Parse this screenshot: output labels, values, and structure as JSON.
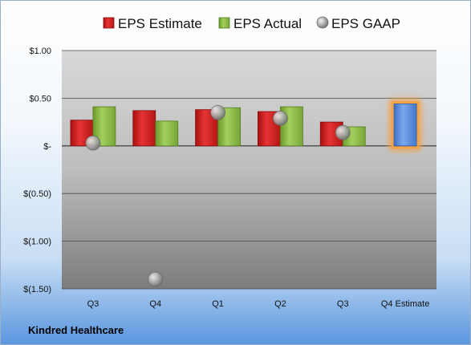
{
  "chart_data": {
    "type": "bar",
    "categories": [
      "Q3",
      "Q4",
      "Q1",
      "Q2",
      "Q3",
      "Q4 Estimate"
    ],
    "series": [
      {
        "name": "EPS Estimate",
        "type": "bar",
        "color": "#d42020",
        "values": [
          0.27,
          0.37,
          0.38,
          0.36,
          0.25,
          null
        ]
      },
      {
        "name": "EPS Actual",
        "type": "bar",
        "color": "#8db84a",
        "values": [
          0.41,
          0.26,
          0.4,
          0.41,
          0.2,
          null
        ]
      },
      {
        "name": "EPS GAAP",
        "type": "scatter",
        "color": "#a8a8a8",
        "values": [
          0.03,
          -1.4,
          0.35,
          0.29,
          0.14,
          null
        ]
      },
      {
        "name": "Q4 Estimate",
        "type": "bar",
        "color": "#4f86d6",
        "highlight": "#f5a040",
        "values": [
          null,
          null,
          null,
          null,
          null,
          0.44
        ]
      }
    ],
    "yticks": [
      {
        "value": 1.0,
        "label": "$1.00"
      },
      {
        "value": 0.5,
        "label": "$0.50"
      },
      {
        "value": 0.0,
        "label": "$-"
      },
      {
        "value": -0.5,
        "label": "$(0.50)"
      },
      {
        "value": -1.0,
        "label": "$(1.00)"
      },
      {
        "value": -1.5,
        "label": "$(1.50)"
      }
    ],
    "ylim": [
      -1.5,
      1.0
    ],
    "grid": true,
    "legend_position": "top",
    "legend": [
      "EPS Estimate",
      "EPS Actual",
      "EPS GAAP"
    ],
    "company": "Kindred Healthcare"
  }
}
